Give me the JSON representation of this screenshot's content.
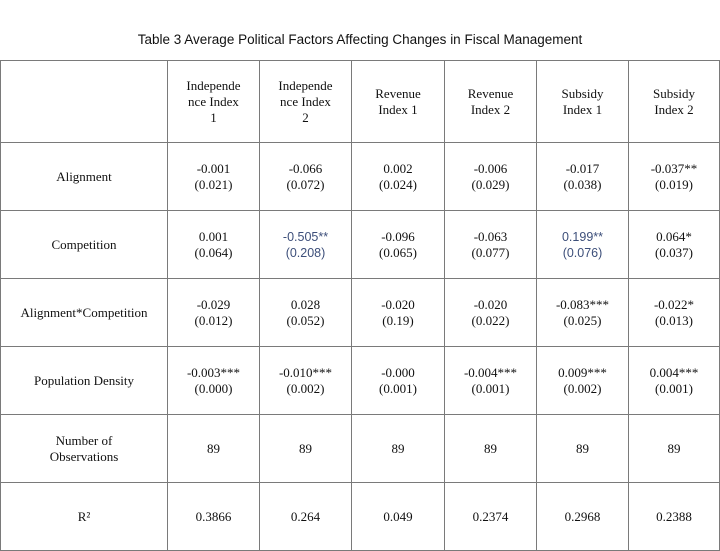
{
  "title": "Table 3 Average Political Factors Affecting Changes in Fiscal Management",
  "columns": [
    "",
    "Independe\nnce Index\n1",
    "Independe\nnce Index\n2",
    "Revenue\nIndex 1",
    "Revenue\nIndex 2",
    "Subsidy\nIndex 1",
    "Subsidy\nIndex 2"
  ],
  "rows": [
    {
      "label": "Alignment",
      "cells": [
        {
          "coef": "-0.001",
          "se": "(0.021)"
        },
        {
          "coef": "-0.066",
          "se": "(0.072)"
        },
        {
          "coef": "0.002",
          "se": "(0.024)"
        },
        {
          "coef": "-0.006",
          "se": "(0.029)"
        },
        {
          "coef": "-0.017",
          "se": "(0.038)"
        },
        {
          "coef": "-0.037**",
          "se": "(0.019)"
        }
      ]
    },
    {
      "label": "Competition",
      "cells": [
        {
          "coef": "0.001",
          "se": "(0.064)"
        },
        {
          "coef": "-0.505**",
          "se": "(0.208)",
          "highlight": true
        },
        {
          "coef": "-0.096",
          "se": "(0.065)"
        },
        {
          "coef": "-0.063",
          "se": "(0.077)"
        },
        {
          "coef": "0.199**",
          "se": "(0.076)",
          "highlight": true
        },
        {
          "coef": "0.064*",
          "se": "(0.037)"
        }
      ]
    },
    {
      "label": "Alignment*Competition",
      "cells": [
        {
          "coef": "-0.029",
          "se": "(0.012)"
        },
        {
          "coef": "0.028",
          "se": "(0.052)"
        },
        {
          "coef": "-0.020",
          "se": "(0.19)"
        },
        {
          "coef": "-0.020",
          "se": "(0.022)"
        },
        {
          "coef": "-0.083***",
          "se": "(0.025)"
        },
        {
          "coef": "-0.022*",
          "se": "(0.013)"
        }
      ]
    },
    {
      "label": "Population Density",
      "cells": [
        {
          "coef": "-0.003***",
          "se": "(0.000)"
        },
        {
          "coef": "-0.010***",
          "se": "(0.002)"
        },
        {
          "coef": "-0.000",
          "se": "(0.001)"
        },
        {
          "coef": "-0.004***",
          "se": "(0.001)"
        },
        {
          "coef": "0.009***",
          "se": "(0.002)"
        },
        {
          "coef": "0.004***",
          "se": "(0.001)"
        }
      ]
    },
    {
      "label": "Number of\nObservations",
      "cells": [
        {
          "coef": "89"
        },
        {
          "coef": "89"
        },
        {
          "coef": "89"
        },
        {
          "coef": "89"
        },
        {
          "coef": "89"
        },
        {
          "coef": "89"
        }
      ]
    },
    {
      "label": "R²",
      "cells": [
        {
          "coef": "0.3866"
        },
        {
          "coef": "0.264"
        },
        {
          "coef": "0.049"
        },
        {
          "coef": "0.2374"
        },
        {
          "coef": "0.2968"
        },
        {
          "coef": "0.2388"
        }
      ]
    }
  ],
  "colors": {
    "border": "#7a7a7a",
    "text": "#111111",
    "highlight_text": "#3d4f7a"
  }
}
